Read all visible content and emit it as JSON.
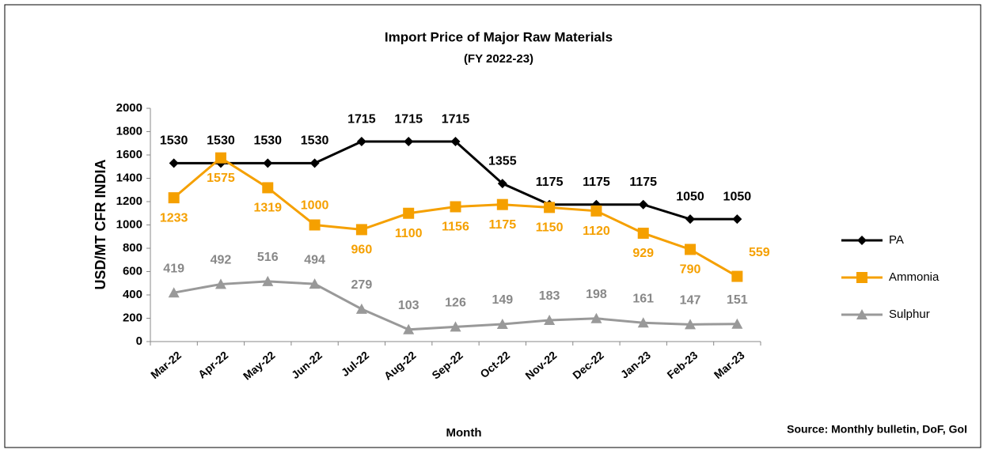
{
  "chart_data": {
    "type": "line",
    "title": "Import Price of Major Raw Materials",
    "subtitle": "(FY 2022-23)",
    "y_label": "USD/MT CFR INDIA",
    "x_label": "Month",
    "source": "Source: Monthly bulletin, DoF, GoI",
    "categories": [
      "Mar-22",
      "Apr-22",
      "May-22",
      "Jun-22",
      "Jul-22",
      "Aug-22",
      "Sep-22",
      "Oct-22",
      "Nov-22",
      "Dec-22",
      "Jan-23",
      "Feb-23",
      "Mar-23"
    ],
    "series": [
      {
        "name": "PA",
        "color": "#000000",
        "marker": "diamond",
        "values": [
          1530,
          1530,
          1530,
          1530,
          1715,
          1715,
          1715,
          1355,
          1175,
          1175,
          1175,
          1050,
          1050
        ]
      },
      {
        "name": "Ammonia",
        "color": "#f5a000",
        "marker": "square",
        "values": [
          1233,
          1575,
          1319,
          1000,
          960,
          1100,
          1156,
          1175,
          1150,
          1120,
          929,
          790,
          559
        ]
      },
      {
        "name": "Sulphur",
        "color": "#999999",
        "marker": "triangle",
        "values": [
          419,
          492,
          516,
          494,
          279,
          103,
          126,
          149,
          183,
          198,
          161,
          147,
          151
        ]
      }
    ],
    "ylim": [
      0,
      2000
    ],
    "yticks": [
      0,
      200,
      400,
      600,
      800,
      1000,
      1200,
      1400,
      1600,
      1800,
      2000
    ],
    "grid": false,
    "legend": "right"
  }
}
